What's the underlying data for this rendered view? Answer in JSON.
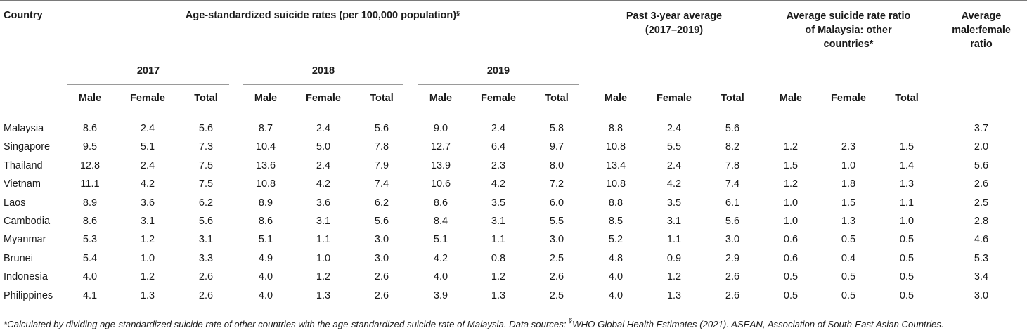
{
  "table": {
    "country_header": "Country",
    "rates_header": "Age-standardized suicide rates (per 100,000 population)",
    "rates_header_mark": "§",
    "avg_header_line1": "Past 3-year average",
    "avg_header_line2": "(2017–2019)",
    "ratio_header_line1": "Average suicide rate ratio",
    "ratio_header_line2": "of Malaysia: other",
    "ratio_header_line3": "countries*",
    "mf_header_line1": "Average",
    "mf_header_line2": "male:female",
    "mf_header_line3": "ratio",
    "years": [
      "2017",
      "2018",
      "2019"
    ],
    "sub_headers": [
      "Male",
      "Female",
      "Total",
      "Male",
      "Female",
      "Total",
      "Male",
      "Female",
      "Total",
      "Male",
      "Female",
      "Total",
      "Male",
      "Female",
      "Total"
    ],
    "rows": [
      {
        "country": "Malaysia",
        "values": [
          "8.6",
          "2.4",
          "5.6",
          "8.7",
          "2.4",
          "5.6",
          "9.0",
          "2.4",
          "5.8",
          "8.8",
          "2.4",
          "5.6",
          "",
          "",
          "",
          "3.7"
        ]
      },
      {
        "country": "Singapore",
        "values": [
          "9.5",
          "5.1",
          "7.3",
          "10.4",
          "5.0",
          "7.8",
          "12.7",
          "6.4",
          "9.7",
          "10.8",
          "5.5",
          "8.2",
          "1.2",
          "2.3",
          "1.5",
          "2.0"
        ]
      },
      {
        "country": "Thailand",
        "values": [
          "12.8",
          "2.4",
          "7.5",
          "13.6",
          "2.4",
          "7.9",
          "13.9",
          "2.3",
          "8.0",
          "13.4",
          "2.4",
          "7.8",
          "1.5",
          "1.0",
          "1.4",
          "5.6"
        ]
      },
      {
        "country": "Vietnam",
        "values": [
          "11.1",
          "4.2",
          "7.5",
          "10.8",
          "4.2",
          "7.4",
          "10.6",
          "4.2",
          "7.2",
          "10.8",
          "4.2",
          "7.4",
          "1.2",
          "1.8",
          "1.3",
          "2.6"
        ]
      },
      {
        "country": "Laos",
        "values": [
          "8.9",
          "3.6",
          "6.2",
          "8.9",
          "3.6",
          "6.2",
          "8.6",
          "3.5",
          "6.0",
          "8.8",
          "3.5",
          "6.1",
          "1.0",
          "1.5",
          "1.1",
          "2.5"
        ]
      },
      {
        "country": "Cambodia",
        "values": [
          "8.6",
          "3.1",
          "5.6",
          "8.6",
          "3.1",
          "5.6",
          "8.4",
          "3.1",
          "5.5",
          "8.5",
          "3.1",
          "5.6",
          "1.0",
          "1.3",
          "1.0",
          "2.8"
        ]
      },
      {
        "country": "Myanmar",
        "values": [
          "5.3",
          "1.2",
          "3.1",
          "5.1",
          "1.1",
          "3.0",
          "5.1",
          "1.1",
          "3.0",
          "5.2",
          "1.1",
          "3.0",
          "0.6",
          "0.5",
          "0.5",
          "4.6"
        ]
      },
      {
        "country": "Brunei",
        "values": [
          "5.4",
          "1.0",
          "3.3",
          "4.9",
          "1.0",
          "3.0",
          "4.2",
          "0.8",
          "2.5",
          "4.8",
          "0.9",
          "2.9",
          "0.6",
          "0.4",
          "0.5",
          "5.3"
        ]
      },
      {
        "country": "Indonesia",
        "values": [
          "4.0",
          "1.2",
          "2.6",
          "4.0",
          "1.2",
          "2.6",
          "4.0",
          "1.2",
          "2.6",
          "4.0",
          "1.2",
          "2.6",
          "0.5",
          "0.5",
          "0.5",
          "3.4"
        ]
      },
      {
        "country": "Philippines",
        "values": [
          "4.1",
          "1.3",
          "2.6",
          "4.0",
          "1.3",
          "2.6",
          "3.9",
          "1.3",
          "2.5",
          "4.0",
          "1.3",
          "2.6",
          "0.5",
          "0.5",
          "0.5",
          "3.0"
        ]
      }
    ]
  },
  "footnote": {
    "part1": "*Calculated by dividing age-standardized suicide rate of other countries with the age-standardized suicide rate of Malaysia. Data sources: ",
    "mark": "§",
    "part2": "WHO Global Health Estimates (2021). ASEAN, Association of South-East Asian Countries."
  }
}
